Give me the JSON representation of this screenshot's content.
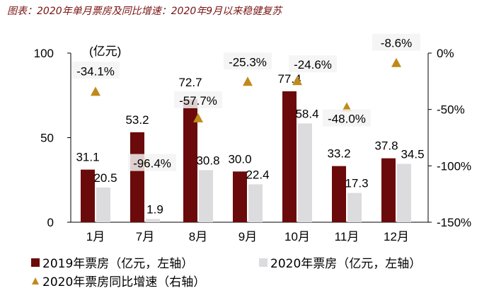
{
  "title": "图表：2020年单月票房及同比增速：2020年9月以来稳健复苏",
  "chart_data": {
    "type": "bar",
    "categories": [
      "1月",
      "7月",
      "8月",
      "9月",
      "10月",
      "11月",
      "12月"
    ],
    "series": [
      {
        "name": "2019年票房（亿元，左轴）",
        "axis": "left",
        "kind": "bar",
        "color": "#6b0a0a",
        "values": [
          31.1,
          53.2,
          72.7,
          30.0,
          77.4,
          33.2,
          37.8
        ],
        "labels": [
          "31.1",
          "53.2",
          "72.7",
          "30.0",
          "77.4",
          "33.2",
          "37.8"
        ]
      },
      {
        "name": "2020年票房（亿元，左轴）",
        "axis": "left",
        "kind": "bar",
        "color": "#dcdcdf",
        "values": [
          20.5,
          1.9,
          30.8,
          22.4,
          58.4,
          17.3,
          34.5
        ],
        "labels": [
          "20.5",
          "1.9",
          "30.8",
          "22.4",
          "58.4",
          "17.3",
          "34.5"
        ]
      },
      {
        "name": "2020年票房同比增速（右轴）",
        "axis": "right",
        "kind": "marker",
        "color": "#c08a1a",
        "values": [
          -34.1,
          -96.4,
          -57.7,
          -25.3,
          -24.6,
          -48.0,
          -8.6
        ],
        "labels": [
          "-34.1%",
          "-96.4%",
          "-57.7%",
          "-25.3%",
          "-24.6%",
          "-48.0%",
          "-8.6%"
        ]
      }
    ],
    "left_axis": {
      "unit_label": "(亿元)",
      "ylim": [
        0,
        100
      ],
      "ticks": [
        "0",
        "50",
        "100"
      ]
    },
    "right_axis": {
      "ylim": [
        -150,
        0
      ],
      "ticks": [
        "0%",
        "-50%",
        "-100%",
        "-150%"
      ]
    },
    "grid": false,
    "legend_position": "bottom"
  }
}
